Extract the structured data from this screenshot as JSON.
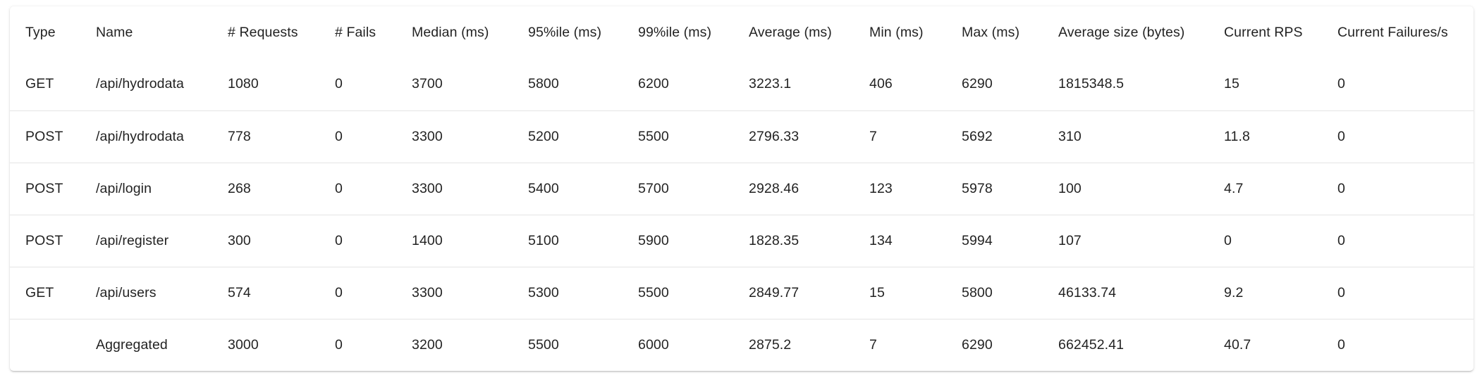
{
  "table": {
    "headers": [
      "Type",
      "Name",
      "# Requests",
      "# Fails",
      "Median (ms)",
      "95%ile (ms)",
      "99%ile (ms)",
      "Average (ms)",
      "Min (ms)",
      "Max (ms)",
      "Average size (bytes)",
      "Current RPS",
      "Current Failures/s"
    ],
    "rows": [
      [
        "GET",
        "/api/hydrodata",
        "1080",
        "0",
        "3700",
        "5800",
        "6200",
        "3223.1",
        "406",
        "6290",
        "1815348.5",
        "15",
        "0"
      ],
      [
        "POST",
        "/api/hydrodata",
        "778",
        "0",
        "3300",
        "5200",
        "5500",
        "2796.33",
        "7",
        "5692",
        "310",
        "11.8",
        "0"
      ],
      [
        "POST",
        "/api/login",
        "268",
        "0",
        "3300",
        "5400",
        "5700",
        "2928.46",
        "123",
        "5978",
        "100",
        "4.7",
        "0"
      ],
      [
        "POST",
        "/api/register",
        "300",
        "0",
        "1400",
        "5100",
        "5900",
        "1828.35",
        "134",
        "5994",
        "107",
        "0",
        "0"
      ],
      [
        "GET",
        "/api/users",
        "574",
        "0",
        "3300",
        "5300",
        "5500",
        "2849.77",
        "15",
        "5800",
        "46133.74",
        "9.2",
        "0"
      ],
      [
        "",
        "Aggregated",
        "3000",
        "0",
        "3200",
        "5500",
        "6000",
        "2875.2",
        "7",
        "6290",
        "662452.41",
        "40.7",
        "0"
      ]
    ]
  }
}
